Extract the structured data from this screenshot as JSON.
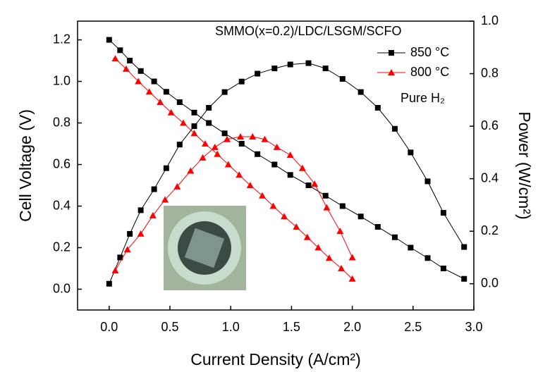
{
  "chart_data": {
    "type": "line",
    "x_label": "Current Density (A/cm²)",
    "y_label": "Cell Voltage (V)",
    "y2_label": "Power (W/cm²)",
    "annotations": [
      "SMMO(x=0.2)/LDC/LSGM/SCFO",
      "Pure H₂"
    ],
    "xlim": [
      -0.26,
      3.0
    ],
    "ylim": [
      -0.1,
      1.29
    ],
    "y2lim": [
      -0.1,
      1.0
    ],
    "xticks": [
      {
        "value": 0,
        "label": "0.0"
      },
      0.5,
      {
        "value": 1,
        "label": "1.0"
      },
      1.5,
      {
        "value": 2,
        "label": "2.0"
      },
      2.5,
      {
        "value": 3,
        "label": "3.0"
      }
    ],
    "yticks": [
      {
        "value": 0,
        "label": "0.0"
      },
      0.2,
      0.4,
      0.6,
      0.8,
      {
        "value": 1,
        "label": "1.0"
      },
      1.2
    ],
    "y2ticks": [
      {
        "value": 0,
        "label": "0.0"
      },
      0.2,
      0.4,
      0.6,
      0.8,
      {
        "value": 1,
        "label": "1.0"
      }
    ],
    "series": [
      {
        "name": "850 °C",
        "color": "#000000",
        "marker": "square",
        "x": [
          0,
          0.09,
          0.17,
          0.26,
          0.37,
          0.47,
          0.58,
          0.7,
          0.82,
          0.95,
          1.09,
          1.22,
          1.36,
          1.49,
          1.64,
          1.78,
          1.92,
          2.07,
          2.21,
          2.35,
          2.48,
          2.62,
          2.75,
          2.92
        ],
        "values": [
          1.2,
          1.15,
          1.1,
          1.05,
          1.0,
          0.95,
          0.9,
          0.85,
          0.8,
          0.75,
          0.7,
          0.65,
          0.6,
          0.55,
          0.5,
          0.45,
          0.4,
          0.35,
          0.3,
          0.25,
          0.2,
          0.15,
          0.1,
          0.05
        ]
      },
      {
        "name": "800 °C",
        "color": "#ff0000",
        "marker": "triangle",
        "x": [
          0.05,
          0.14,
          0.24,
          0.33,
          0.42,
          0.51,
          0.61,
          0.7,
          0.79,
          0.89,
          0.98,
          1.07,
          1.16,
          1.26,
          1.35,
          1.44,
          1.54,
          1.63,
          1.72,
          1.81,
          1.91,
          2.0
        ],
        "values": [
          1.11,
          1.06,
          1.0,
          0.95,
          0.9,
          0.85,
          0.8,
          0.75,
          0.7,
          0.65,
          0.6,
          0.55,
          0.5,
          0.45,
          0.4,
          0.35,
          0.3,
          0.25,
          0.2,
          0.15,
          0.1,
          0.05
        ]
      },
      {
        "color": "#000000",
        "marker": "square",
        "axis": "y2",
        "x": [
          0,
          0.09,
          0.17,
          0.26,
          0.37,
          0.47,
          0.58,
          0.7,
          0.82,
          0.95,
          1.09,
          1.22,
          1.36,
          1.49,
          1.64,
          1.78,
          1.92,
          2.07,
          2.21,
          2.35,
          2.48,
          2.62,
          2.75,
          2.92
        ],
        "values": [
          0.0,
          0.1,
          0.19,
          0.28,
          0.36,
          0.44,
          0.53,
          0.6,
          0.67,
          0.73,
          0.77,
          0.8,
          0.82,
          0.835,
          0.84,
          0.82,
          0.78,
          0.73,
          0.67,
          0.59,
          0.5,
          0.39,
          0.27,
          0.14
        ]
      },
      {
        "color": "#ff0000",
        "marker": "triangle",
        "axis": "y2",
        "x": [
          0.05,
          0.15,
          0.26,
          0.36,
          0.46,
          0.56,
          0.67,
          0.77,
          0.87,
          0.97,
          1.08,
          1.18,
          1.28,
          1.38,
          1.49,
          1.59,
          1.69,
          1.79,
          1.9,
          2.0
        ],
        "values": [
          0.05,
          0.13,
          0.19,
          0.26,
          0.32,
          0.37,
          0.43,
          0.48,
          0.52,
          0.55,
          0.56,
          0.56,
          0.55,
          0.52,
          0.49,
          0.44,
          0.38,
          0.29,
          0.2,
          0.1
        ]
      }
    ]
  }
}
